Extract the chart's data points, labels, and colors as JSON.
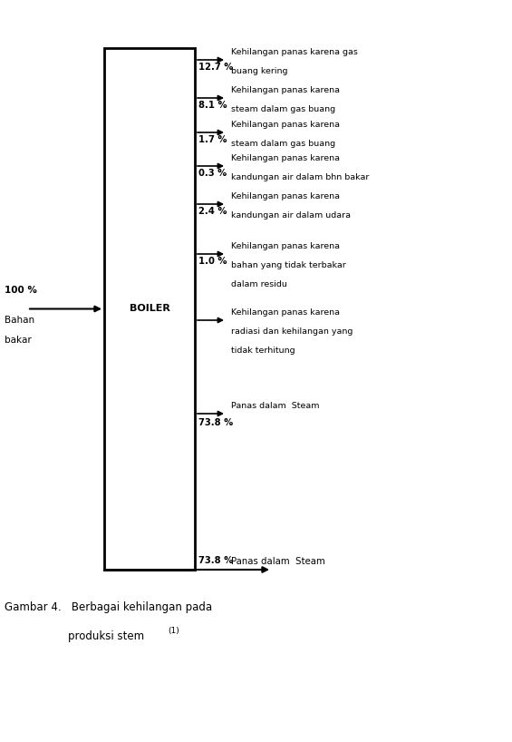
{
  "boiler_label": "BOILER",
  "input_label": "100 %",
  "input_sublabel1": "Bahan",
  "input_sublabel2": "bakar",
  "losses": [
    {
      "pct": "12.7 %",
      "desc1": "Kehilangan panas karena gas",
      "desc2": "buang kering",
      "desc3": ""
    },
    {
      "pct": "8.1 %",
      "desc1": "Kehilangan panas karena",
      "desc2": "steam dalam gas buang",
      "desc3": ""
    },
    {
      "pct": "1.7 %",
      "desc1": "Kehilangan panas karena",
      "desc2": "steam dalam gas buang",
      "desc3": ""
    },
    {
      "pct": "0.3 %",
      "desc1": "Kehilangan panas karena",
      "desc2": "kandungan air dalam bhn bakar",
      "desc3": ""
    },
    {
      "pct": "2.4 %",
      "desc1": "Kehilangan panas karena",
      "desc2": "kandungan air dalam udara",
      "desc3": ""
    },
    {
      "pct": "1.0 %",
      "desc1": "Kehilangan panas karena",
      "desc2": "bahan yang tidak terbakar",
      "desc3": "dalam residu"
    },
    {
      "pct": "",
      "desc1": "Kehilangan panas karena",
      "desc2": "radiasi dan kehilangan yang",
      "desc3": "tidak terhitung"
    },
    {
      "pct": "73.8 %",
      "desc1": "Panas dalam  Steam",
      "desc2": "",
      "desc3": ""
    }
  ],
  "caption_line1": "Gambar 4.   Berbagai kehilangan pada",
  "caption_line2": "produksi stem",
  "caption_super": "(1)",
  "bg_color": "#ffffff",
  "text_color": "#000000"
}
